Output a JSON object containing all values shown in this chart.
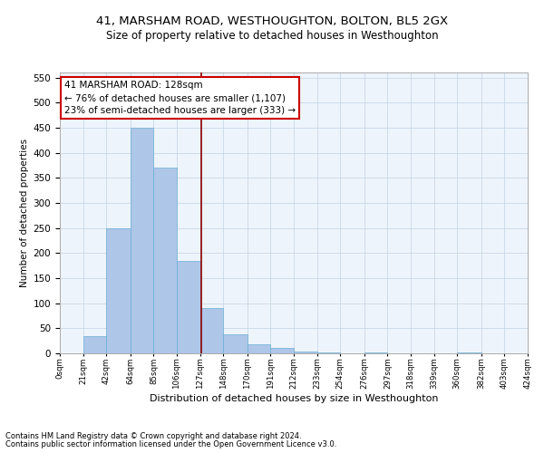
{
  "title": "41, MARSHAM ROAD, WESTHOUGHTON, BOLTON, BL5 2GX",
  "subtitle": "Size of property relative to detached houses in Westhoughton",
  "xlabel": "Distribution of detached houses by size in Westhoughton",
  "ylabel": "Number of detached properties",
  "footnote1": "Contains HM Land Registry data © Crown copyright and database right 2024.",
  "footnote2": "Contains public sector information licensed under the Open Government Licence v3.0.",
  "bar_values": [
    0,
    35,
    250,
    450,
    370,
    185,
    90,
    38,
    18,
    10,
    4,
    1,
    0,
    2,
    0,
    0,
    0,
    1,
    0,
    0
  ],
  "bin_edges": [
    0,
    21,
    42,
    64,
    85,
    106,
    127,
    148,
    170,
    191,
    212,
    233,
    254,
    276,
    297,
    318,
    339,
    360,
    382,
    403,
    424
  ],
  "xtick_labels": [
    "0sqm",
    "21sqm",
    "42sqm",
    "64sqm",
    "85sqm",
    "106sqm",
    "127sqm",
    "148sqm",
    "170sqm",
    "191sqm",
    "212sqm",
    "233sqm",
    "254sqm",
    "276sqm",
    "297sqm",
    "318sqm",
    "339sqm",
    "360sqm",
    "382sqm",
    "403sqm",
    "424sqm"
  ],
  "property_size": 128,
  "property_label": "41 MARSHAM ROAD: 128sqm",
  "annotation_line1": "← 76% of detached houses are smaller (1,107)",
  "annotation_line2": "23% of semi-detached houses are larger (333) →",
  "bar_color": "#aec6e8",
  "bar_edge_color": "#6aafd6",
  "vline_color": "#8b0000",
  "annotation_box_color": "#ffffff",
  "annotation_box_edge": "#cc0000",
  "grid_color": "#c8d8e8",
  "bg_color": "#eef4fb",
  "ylim": [
    0,
    560
  ],
  "xlim": [
    0,
    424
  ]
}
